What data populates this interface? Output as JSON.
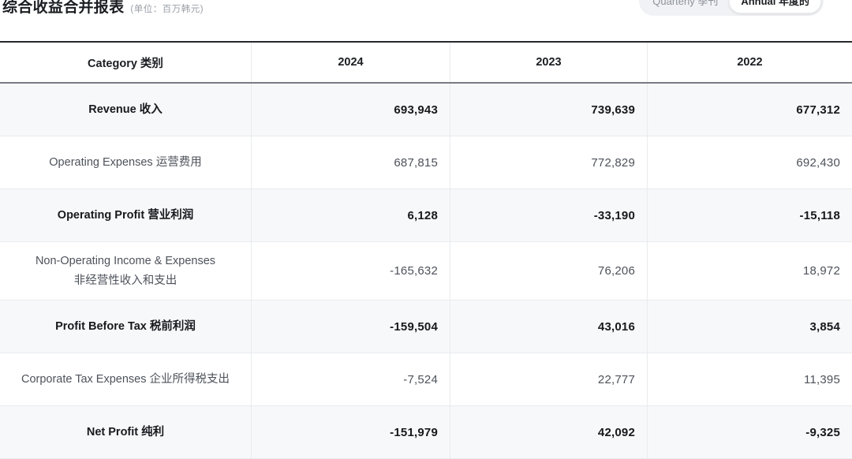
{
  "header": {
    "title": "综合收益合并报表",
    "unit_note": "(单位：百万韩元)",
    "toggle": {
      "quarterly_label": "Quarterly 季刊",
      "annual_label": "Annual 年度的",
      "selected": "Annual 年度的"
    }
  },
  "table": {
    "columns": [
      "Category 类别",
      "2024",
      "2023",
      "2022"
    ],
    "rows": [
      {
        "label_lines": [
          "Revenue 收入"
        ],
        "values": [
          "693,943",
          "739,639",
          "677,312"
        ],
        "highlight": true
      },
      {
        "label_lines": [
          "Operating Expenses 运营费用"
        ],
        "values": [
          "687,815",
          "772,829",
          "692,430"
        ],
        "highlight": false
      },
      {
        "label_lines": [
          "Operating Profit 营业利润"
        ],
        "values": [
          "6,128",
          "-33,190",
          "-15,118"
        ],
        "highlight": true
      },
      {
        "label_lines": [
          "Non-Operating Income & Expenses",
          "非经营性收入和支出"
        ],
        "values": [
          "-165,632",
          "76,206",
          "18,972"
        ],
        "highlight": false
      },
      {
        "label_lines": [
          "Profit Before Tax 税前利润"
        ],
        "values": [
          "-159,504",
          "43,016",
          "3,854"
        ],
        "highlight": true
      },
      {
        "label_lines": [
          "Corporate Tax Expenses 企业所得税支出"
        ],
        "values": [
          "-7,524",
          "22,777",
          "11,395"
        ],
        "highlight": false
      },
      {
        "label_lines": [
          "Net Profit 纯利"
        ],
        "values": [
          "-151,979",
          "42,092",
          "-9,325"
        ],
        "highlight": true
      }
    ]
  },
  "colors": {
    "highlight_row_bg": "#f7f8fa",
    "table_top_border": "#26282c",
    "header_rule": "#797d83",
    "row_divider": "#e9ebee",
    "text_primary": "#17191d",
    "text_secondary": "#4d525a",
    "text_muted": "#9aa0a8",
    "toggle_bg": "#f1f2f5",
    "toggle_selected_bg": "#ffffff"
  }
}
